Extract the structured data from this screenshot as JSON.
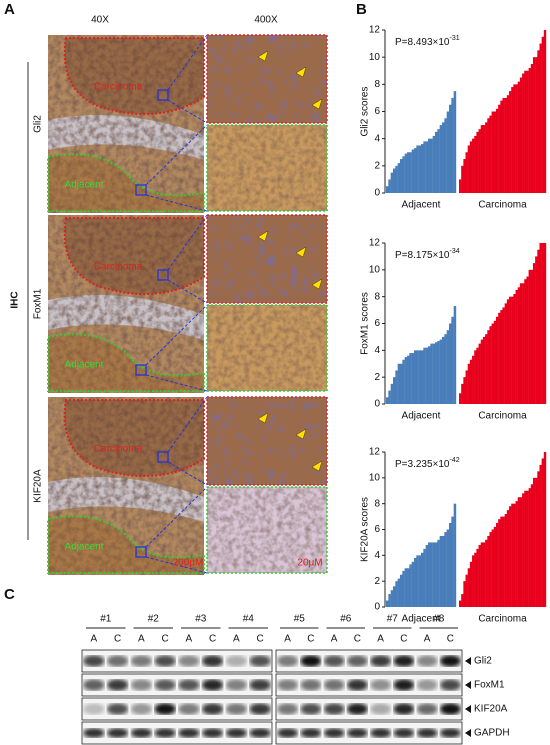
{
  "panel_a": {
    "label": "A",
    "columns": [
      "40X",
      "400X"
    ],
    "side_label": "IHC",
    "rows": [
      {
        "marker": "Gli2",
        "regions": [
          "Carcinoma",
          "Adjacent"
        ]
      },
      {
        "marker": "FoxM1",
        "regions": [
          "Carcinoma",
          "Adjacent"
        ]
      },
      {
        "marker": "KIF20A",
        "regions": [
          "Carcinoma",
          "Adjacent"
        ]
      }
    ],
    "scale_bars": [
      "200μM",
      "20μM"
    ]
  },
  "panel_b": {
    "label": "B"
  },
  "chart_data": [
    {
      "type": "bar",
      "y_label": "Gli2 scores",
      "annotation": {
        "base": "P=8.493×10",
        "exponent": "-31"
      },
      "ylim": [
        0,
        12
      ],
      "yticks": [
        0,
        2,
        4,
        6,
        8,
        10,
        12
      ],
      "series": [
        {
          "name": "Adjacent",
          "color": "#4a7ebb",
          "values": [
            0.5,
            1,
            1.5,
            1.8,
            2,
            2.2,
            2.5,
            2.7,
            2.9,
            3,
            3,
            3.2,
            3.3,
            3.5,
            3.5,
            3.6,
            3.8,
            3.8,
            4,
            4,
            4.2,
            4.5,
            4.7,
            5,
            5.2,
            5.5,
            6,
            6.5,
            7,
            7.5
          ]
        },
        {
          "name": "Carcinoma",
          "color": "#e8001c",
          "values": [
            1,
            2,
            2.5,
            3,
            3.5,
            3.8,
            4,
            4.2,
            4.5,
            4.7,
            5,
            5,
            5.2,
            5.5,
            5.7,
            6,
            6,
            6.2,
            6.5,
            6.8,
            7,
            7,
            7.2,
            7.5,
            7.8,
            8,
            8,
            8.2,
            8.5,
            8.8,
            9,
            9,
            9.2,
            9.5,
            10,
            10,
            10.5,
            11,
            11.5,
            12
          ]
        }
      ]
    },
    {
      "type": "bar",
      "y_label": "FoxM1 scores",
      "annotation": {
        "base": "P=8.175×10",
        "exponent": "-34"
      },
      "ylim": [
        0,
        12
      ],
      "yticks": [
        0,
        2,
        4,
        6,
        8,
        10,
        12
      ],
      "series": [
        {
          "name": "Adjacent",
          "color": "#4a7ebb",
          "values": [
            0.5,
            1,
            1.5,
            2,
            2.5,
            3,
            3,
            3.3,
            3.5,
            3.6,
            3.8,
            3.8,
            4,
            4,
            4,
            4,
            4.2,
            4.2,
            4.3,
            4.5,
            4.5,
            4.6,
            4.7,
            4.8,
            5,
            5.2,
            5.5,
            6,
            6.5,
            7.3
          ]
        },
        {
          "name": "Carcinoma",
          "color": "#e8001c",
          "values": [
            0.8,
            1.5,
            2,
            2.5,
            3,
            3.3,
            3.6,
            4,
            4.2,
            4.5,
            4.8,
            5,
            5.2,
            5.5,
            5.8,
            6,
            6.2,
            6.5,
            6.8,
            7,
            7.2,
            7.5,
            7.8,
            8,
            8,
            8.2,
            8.5,
            8.7,
            9,
            9,
            9.3,
            9.5,
            10,
            10,
            10.5,
            11,
            11.5,
            12,
            12,
            12
          ]
        }
      ]
    },
    {
      "type": "bar",
      "y_label": "KIF20A scores",
      "annotation": {
        "base": "P=3.235×10",
        "exponent": "-42"
      },
      "ylim": [
        0,
        12
      ],
      "yticks": [
        0,
        2,
        4,
        6,
        8,
        10,
        12
      ],
      "series": [
        {
          "name": "Adjacent",
          "color": "#4a7ebb",
          "values": [
            0.5,
            1,
            1.3,
            1.6,
            2,
            2.2,
            2.5,
            2.8,
            3,
            3,
            3.3,
            3.5,
            3.8,
            4,
            4,
            4.2,
            4.5,
            4.8,
            5,
            5,
            5,
            5,
            5.2,
            5.5,
            5.5,
            5.8,
            6,
            6.5,
            7,
            8
          ]
        },
        {
          "name": "Carcinoma",
          "color": "#e8001c",
          "values": [
            0.5,
            1,
            2,
            2.5,
            3,
            3.5,
            4,
            4.2,
            4.5,
            4.8,
            5,
            5,
            5.2,
            5.5,
            5.8,
            6,
            6.2,
            6.5,
            6.8,
            7,
            7,
            7.2,
            7.5,
            7.8,
            8,
            8,
            8.2,
            8.5,
            8.5,
            8.8,
            9,
            9,
            9.2,
            9.5,
            10,
            10,
            10.5,
            11,
            11.5,
            12
          ]
        }
      ]
    }
  ],
  "panel_c": {
    "label": "C",
    "samples": [
      "#1",
      "#2",
      "#3",
      "#4",
      "#5",
      "#6",
      "#7",
      "#8"
    ],
    "lanes": [
      "A",
      "C"
    ],
    "proteins": [
      "Gli2",
      "FoxM1",
      "KIF20A",
      "GAPDH"
    ]
  }
}
